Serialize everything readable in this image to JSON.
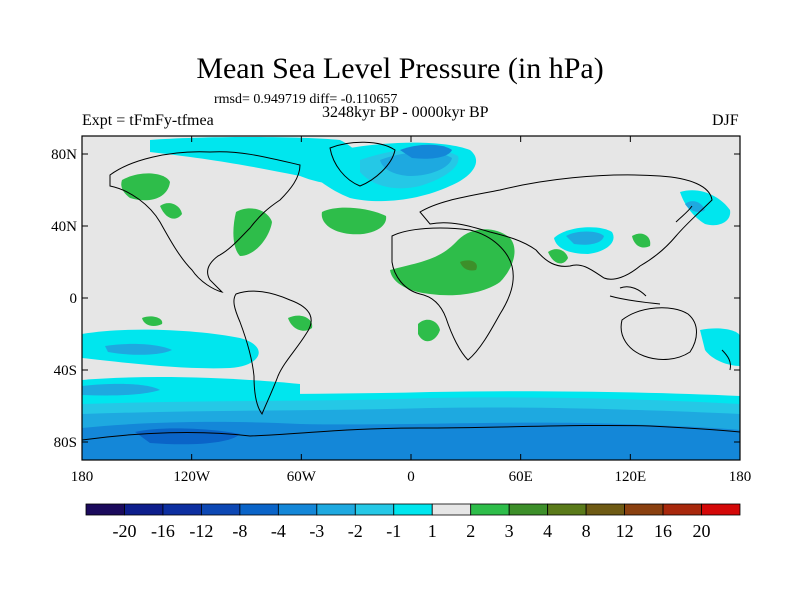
{
  "title": "Mean Sea Level Pressure (in hPa)",
  "stats_text": "rmsd= 0.949719 diff= -0.110657",
  "period_text": "3248kyr BP - 0000kyr BP",
  "experiment_text": "Expt = tFmFy-tfmea",
  "season": "DJF",
  "map": {
    "projection": "cylindrical equidistant",
    "lon_range": [
      -180,
      180
    ],
    "lat_range": [
      -90,
      90
    ],
    "x_ticks": [
      {
        "value": -180,
        "label": "180"
      },
      {
        "value": -120,
        "label": "120W"
      },
      {
        "value": -60,
        "label": "60W"
      },
      {
        "value": 0,
        "label": "0"
      },
      {
        "value": 60,
        "label": "60E"
      },
      {
        "value": 120,
        "label": "120E"
      },
      {
        "value": 180,
        "label": "180"
      }
    ],
    "y_ticks": [
      {
        "value": 80,
        "label": "80N"
      },
      {
        "value": 40,
        "label": "40N"
      },
      {
        "value": 0,
        "label": "0"
      },
      {
        "value": -40,
        "label": "40S"
      },
      {
        "value": -80,
        "label": "80S"
      }
    ],
    "background_color": "#e6e6e6",
    "coast_color": "#000000"
  },
  "colorbar": {
    "levels": [
      "-20",
      "-16",
      "-12",
      "-8",
      "-4",
      "-3",
      "-2",
      "-1",
      "1",
      "2",
      "3",
      "4",
      "8",
      "12",
      "16",
      "20"
    ],
    "colors": [
      "#1b0a5c",
      "#0e1e8c",
      "#0d2fa0",
      "#0d48b4",
      "#0a64c8",
      "#1487d8",
      "#1ea9e0",
      "#25c8e6",
      "#00e6ee",
      "#e6e6e6",
      "#2ebd4a",
      "#3d8f2a",
      "#5a7a1a",
      "#6e5a14",
      "#8a4010",
      "#a8280c",
      "#d40808"
    ]
  }
}
